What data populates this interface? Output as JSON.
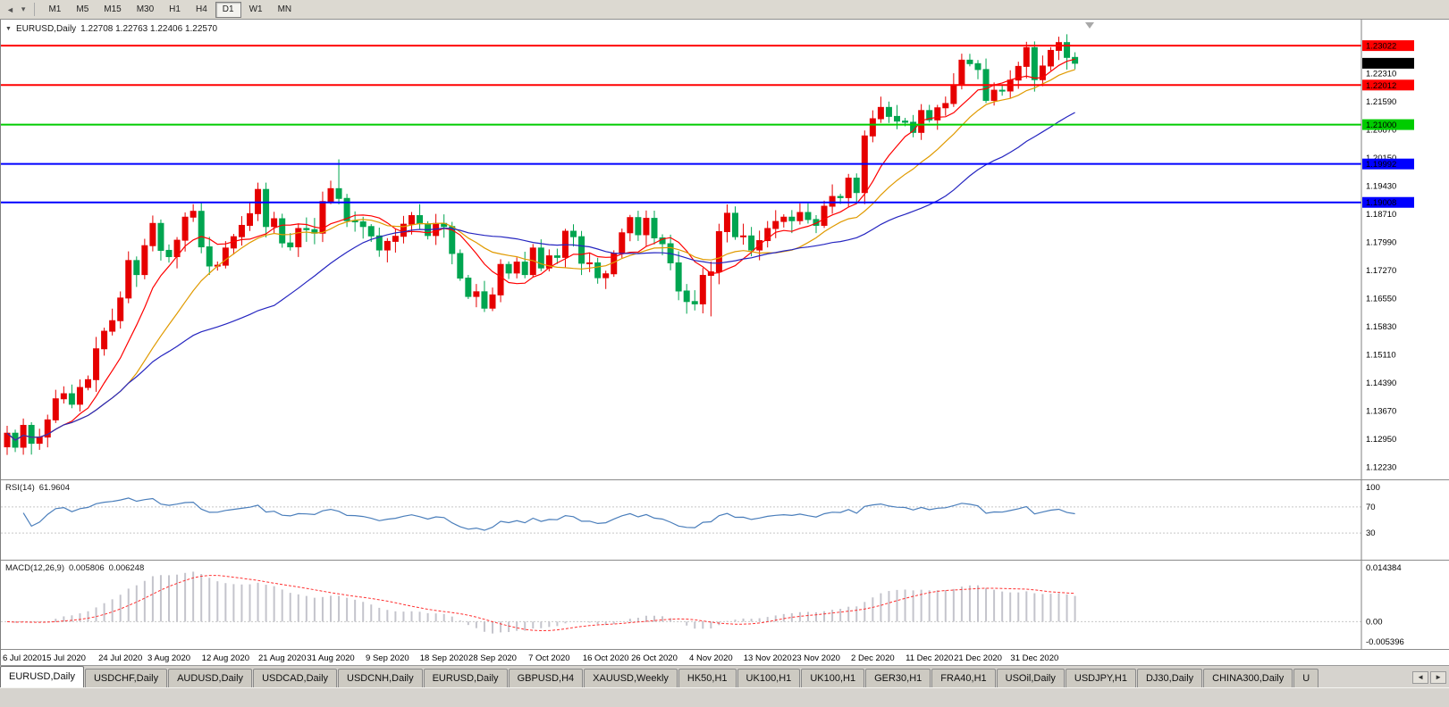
{
  "toolbar": {
    "chart_icon_glyph": "◄",
    "dropdown_icon_glyph": "▾",
    "timeframes": [
      {
        "label": "M1"
      },
      {
        "label": "M5"
      },
      {
        "label": "M15"
      },
      {
        "label": "M30"
      },
      {
        "label": "H1"
      },
      {
        "label": "H4"
      },
      {
        "label": "D1",
        "active": true
      },
      {
        "label": "W1"
      },
      {
        "label": "MN"
      }
    ]
  },
  "chart": {
    "marker": "▼",
    "title_symbol": "EURUSD,Daily",
    "ohlc_text": "1.22708 1.22763 1.22406 1.22570"
  },
  "chart_data": {
    "type": "candlestick",
    "symbol": "EURUSD",
    "timeframe": "Daily",
    "ohlc_display": {
      "open": "1.22708",
      "high": "1.22763",
      "low": "1.22406",
      "close": "1.22570"
    },
    "x_step": 9.05,
    "closes": [
      1.131,
      1.1274,
      1.133,
      1.1284,
      1.13,
      1.1344,
      1.1398,
      1.1411,
      1.1384,
      1.1427,
      1.1447,
      1.1526,
      1.1571,
      1.1598,
      1.1656,
      1.1752,
      1.1716,
      1.179,
      1.1847,
      1.1778,
      1.1762,
      1.1804,
      1.1863,
      1.1878,
      1.1787,
      1.1738,
      1.174,
      1.1784,
      1.1813,
      1.1842,
      1.1872,
      1.1934,
      1.1839,
      1.1859,
      1.1797,
      1.1787,
      1.1834,
      1.1831,
      1.1822,
      1.1903,
      1.1936,
      1.1911,
      1.1854,
      1.1851,
      1.1839,
      1.1815,
      1.1779,
      1.1801,
      1.1814,
      1.1845,
      1.1867,
      1.1846,
      1.1816,
      1.1847,
      1.1839,
      1.177,
      1.1707,
      1.166,
      1.1672,
      1.163,
      1.1664,
      1.1742,
      1.172,
      1.1748,
      1.1716,
      1.1784,
      1.1733,
      1.1764,
      1.176,
      1.1827,
      1.1813,
      1.1745,
      1.1746,
      1.1708,
      1.1718,
      1.177,
      1.1823,
      1.1862,
      1.1818,
      1.186,
      1.181,
      1.1795,
      1.1746,
      1.1674,
      1.1647,
      1.1641,
      1.1714,
      1.1723,
      1.1826,
      1.1873,
      1.1813,
      1.1815,
      1.1779,
      1.1803,
      1.1834,
      1.1852,
      1.1863,
      1.1854,
      1.1875,
      1.1857,
      1.1842,
      1.1891,
      1.1916,
      1.1913,
      1.1963,
      1.1926,
      1.2071,
      1.2115,
      1.2144,
      1.2121,
      1.2109,
      1.2106,
      1.208,
      1.2136,
      1.2112,
      1.2143,
      1.2154,
      1.2202,
      1.2265,
      1.2256,
      1.2241,
      1.2162,
      1.2188,
      1.2186,
      1.2214,
      1.2249,
      1.2297,
      1.2215,
      1.225,
      1.229,
      1.231,
      1.2272,
      1.2257
    ],
    "wick_overrides": {
      "41": {
        "h": 1.2011
      },
      "87": {
        "l": 1.1609
      },
      "126": {
        "h": 1.2312
      },
      "130": {
        "h": 1.2325
      }
    },
    "x_ticks": [
      {
        "i": 0,
        "label": "6 Jul 2020"
      },
      {
        "i": 7,
        "label": "15 Jul 2020"
      },
      {
        "i": 14,
        "label": "24 Jul 2020"
      },
      {
        "i": 20,
        "label": "3 Aug 2020"
      },
      {
        "i": 27,
        "label": "12 Aug 2020"
      },
      {
        "i": 34,
        "label": "21 Aug 2020"
      },
      {
        "i": 40,
        "label": "31 Aug 2020"
      },
      {
        "i": 47,
        "label": "9 Sep 2020"
      },
      {
        "i": 54,
        "label": "18 Sep 2020"
      },
      {
        "i": 60,
        "label": "28 Sep 2020"
      },
      {
        "i": 67,
        "label": "7 Oct 2020"
      },
      {
        "i": 74,
        "label": "16 Oct 2020"
      },
      {
        "i": 80,
        "label": "26 Oct 2020"
      },
      {
        "i": 87,
        "label": "4 Nov 2020"
      },
      {
        "i": 94,
        "label": "13 Nov 2020"
      },
      {
        "i": 100,
        "label": "23 Nov 2020"
      },
      {
        "i": 107,
        "label": "2 Dec 2020"
      },
      {
        "i": 114,
        "label": "11 Dec 2020"
      },
      {
        "i": 120,
        "label": "21 Dec 2020"
      },
      {
        "i": 127,
        "label": "31 Dec 2020"
      }
    ],
    "y_axis": {
      "view_max": 1.2355,
      "view_min": 1.121,
      "tick_first": 1.2231,
      "tick_step": 0.0072,
      "tick_count": 15
    },
    "h_lines": [
      {
        "price": 1.23022,
        "color": "#ff0000",
        "label": "1.23022"
      },
      {
        "price": 1.22012,
        "color": "#ff0000",
        "label": "1.22012"
      },
      {
        "price": 1.21,
        "color": "#00cc00",
        "label": "1.21000"
      },
      {
        "price": 1.19992,
        "color": "#0000ff",
        "label": "1.19992"
      },
      {
        "price": 1.19008,
        "color": "#0000ff",
        "label": "1.19008"
      }
    ],
    "current_price": {
      "value": 1.2257,
      "label": "1.22570"
    },
    "colors": {
      "bull": "#e60000",
      "bear": "#00a550"
    },
    "ma": [
      {
        "name": "ma-fast",
        "period": 8,
        "color": "#ff0000"
      },
      {
        "name": "ma-medium",
        "period": 16,
        "color": "#e09a00"
      },
      {
        "name": "ma-slow",
        "period": 34,
        "color": "#2525c0"
      }
    ],
    "rsi": {
      "name": "RSI(14)",
      "value": "61.9604",
      "period": 14,
      "levels": [
        100,
        70,
        30
      ],
      "color": "#4a7ebb"
    },
    "macd": {
      "name": "MACD(12,26,9)",
      "value": "0.005806",
      "signal_value": "0.006248",
      "fast": 12,
      "slow": 26,
      "signal": 9,
      "scale_max": 0.014384,
      "scale_min": -0.005396,
      "scale_ticks": [
        "0.014384",
        "0.00",
        "-0.005396"
      ],
      "hist_color": "#c4c4cc",
      "signal_color": "#ff3030"
    }
  },
  "tabs": [
    {
      "label": "EURUSD,Daily",
      "active": true
    },
    {
      "label": "USDCHF,Daily"
    },
    {
      "label": "AUDUSD,Daily"
    },
    {
      "label": "USDCAD,Daily"
    },
    {
      "label": "USDCNH,Daily"
    },
    {
      "label": "EURUSD,Daily"
    },
    {
      "label": "GBPUSD,H4"
    },
    {
      "label": "XAUUSD,Weekly"
    },
    {
      "label": "HK50,H1"
    },
    {
      "label": "UK100,H1"
    },
    {
      "label": "UK100,H1"
    },
    {
      "label": "GER30,H1"
    },
    {
      "label": "FRA40,H1"
    },
    {
      "label": "USOil,Daily"
    },
    {
      "label": "USDJPY,H1"
    },
    {
      "label": "DJ30,Daily"
    },
    {
      "label": "CHINA300,Daily"
    },
    {
      "label": "U"
    }
  ],
  "tabbar": {
    "scroll_left": "◄",
    "scroll_right": "►"
  }
}
